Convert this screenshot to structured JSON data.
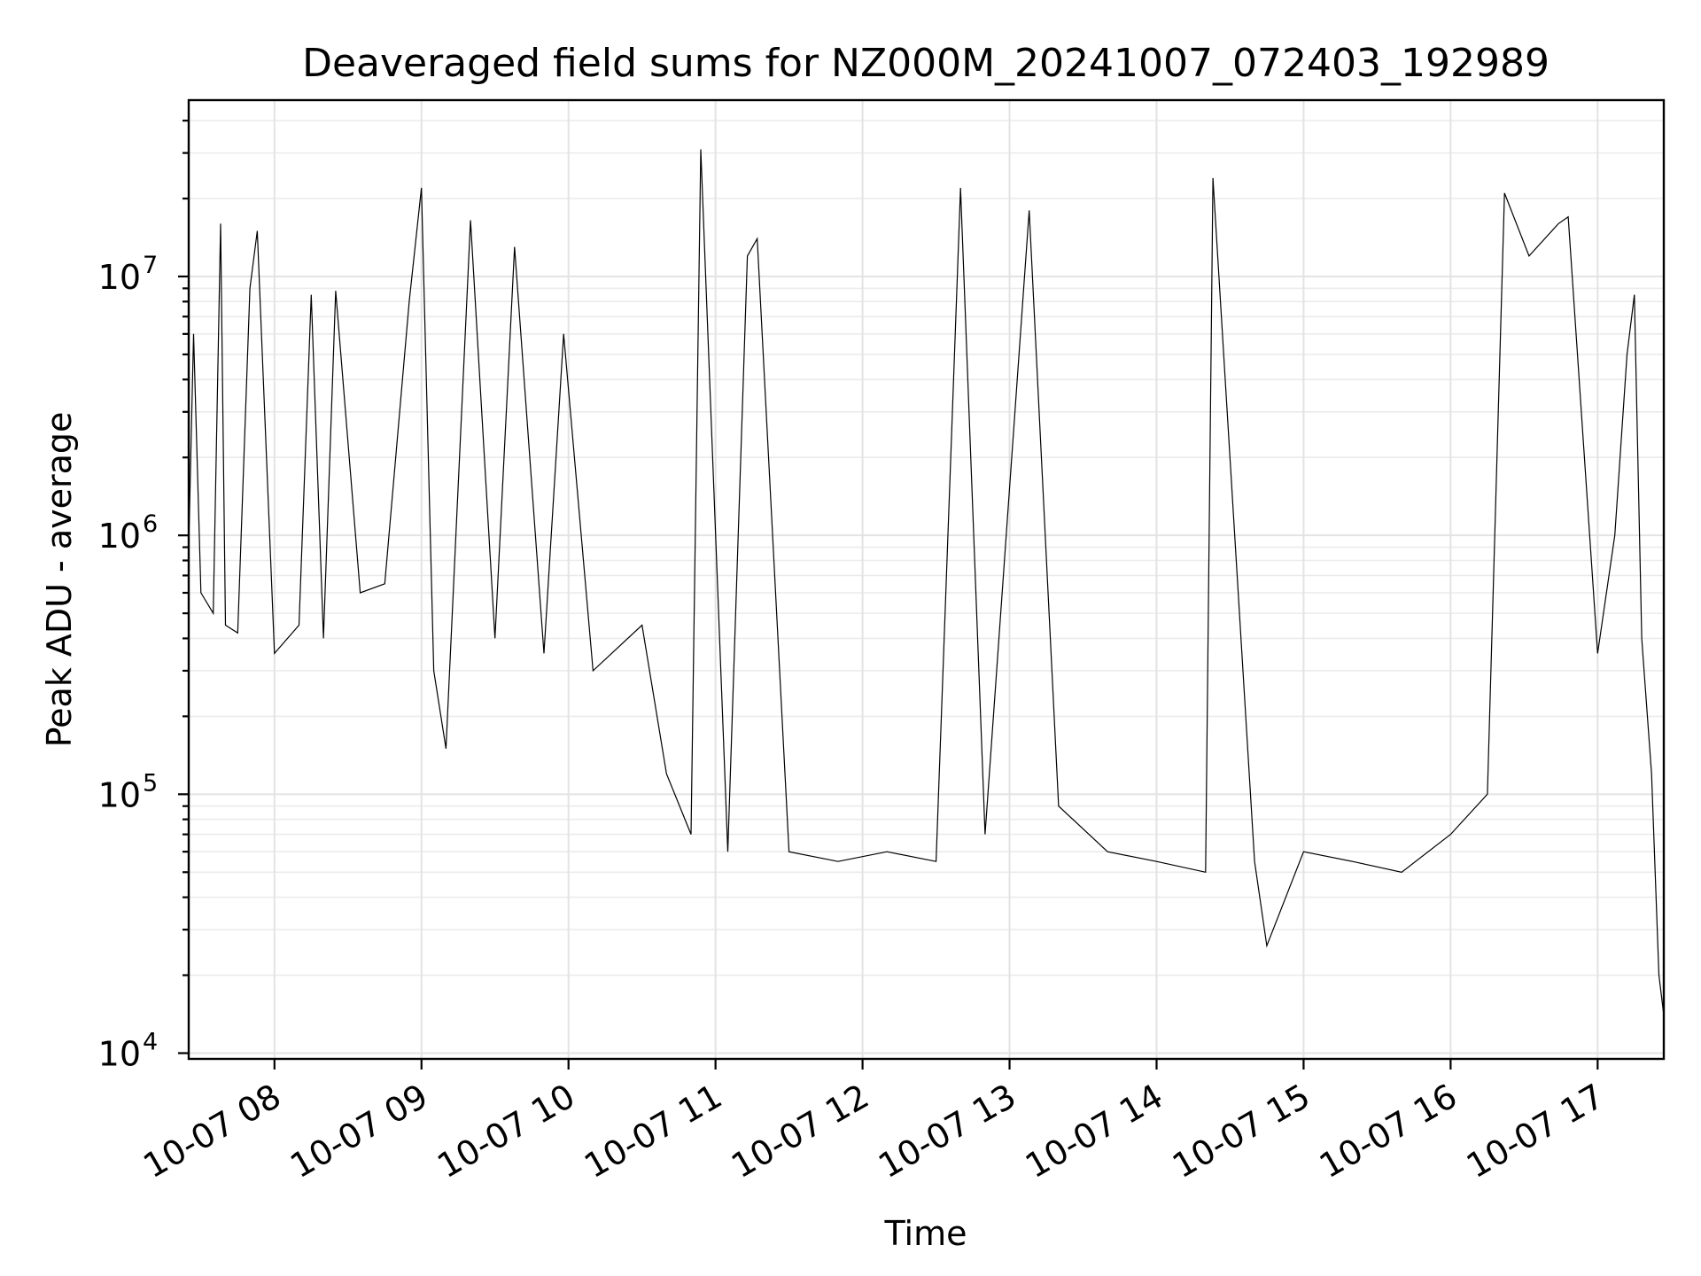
{
  "chart_data": {
    "type": "line",
    "title": "Deaveraged field sums for NZ000M_20241007_072403_192989",
    "xlabel": "Time",
    "ylabel": "Peak ADU - average",
    "yscale": "log",
    "ylim": [
      9500,
      48000000
    ],
    "xlim": [
      "2024-10-07 07:25",
      "2024-10-07 17:27"
    ],
    "grid": true,
    "y_ticks": [
      {
        "base": "10",
        "exp": "4",
        "value": 10000
      },
      {
        "base": "10",
        "exp": "5",
        "value": 100000
      },
      {
        "base": "10",
        "exp": "6",
        "value": 1000000
      },
      {
        "base": "10",
        "exp": "7",
        "value": 10000000
      }
    ],
    "x_ticks": [
      {
        "label": "10-07 08",
        "time": "2024-10-07 08:00"
      },
      {
        "label": "10-07 09",
        "time": "2024-10-07 09:00"
      },
      {
        "label": "10-07 10",
        "time": "2024-10-07 10:00"
      },
      {
        "label": "10-07 11",
        "time": "2024-10-07 11:00"
      },
      {
        "label": "10-07 12",
        "time": "2024-10-07 12:00"
      },
      {
        "label": "10-07 13",
        "time": "2024-10-07 13:00"
      },
      {
        "label": "10-07 14",
        "time": "2024-10-07 14:00"
      },
      {
        "label": "10-07 15",
        "time": "2024-10-07 15:00"
      },
      {
        "label": "10-07 16",
        "time": "2024-10-07 16:00"
      },
      {
        "label": "10-07 17",
        "time": "2024-10-07 17:00"
      }
    ],
    "series": [
      {
        "color": "#000000",
        "points": [
          [
            "2024-10-07 07:25",
            900000
          ],
          [
            "2024-10-07 07:27",
            6000000
          ],
          [
            "2024-10-07 07:30",
            600000
          ],
          [
            "2024-10-07 07:35",
            500000
          ],
          [
            "2024-10-07 07:38",
            16000000
          ],
          [
            "2024-10-07 07:40",
            450000
          ],
          [
            "2024-10-07 07:45",
            420000
          ],
          [
            "2024-10-07 07:50",
            9000000
          ],
          [
            "2024-10-07 07:53",
            15000000
          ],
          [
            "2024-10-07 08:00",
            350000
          ],
          [
            "2024-10-07 08:10",
            450000
          ],
          [
            "2024-10-07 08:15",
            8500000
          ],
          [
            "2024-10-07 08:20",
            400000
          ],
          [
            "2024-10-07 08:25",
            8800000
          ],
          [
            "2024-10-07 08:35",
            600000
          ],
          [
            "2024-10-07 08:45",
            650000
          ],
          [
            "2024-10-07 08:55",
            8000000
          ],
          [
            "2024-10-07 09:00",
            22000000
          ],
          [
            "2024-10-07 09:05",
            300000
          ],
          [
            "2024-10-07 09:10",
            150000
          ],
          [
            "2024-10-07 09:20",
            16500000
          ],
          [
            "2024-10-07 09:30",
            400000
          ],
          [
            "2024-10-07 09:38",
            13000000
          ],
          [
            "2024-10-07 09:50",
            350000
          ],
          [
            "2024-10-07 09:58",
            6000000
          ],
          [
            "2024-10-07 10:10",
            300000
          ],
          [
            "2024-10-07 10:30",
            450000
          ],
          [
            "2024-10-07 10:40",
            120000
          ],
          [
            "2024-10-07 10:50",
            70000
          ],
          [
            "2024-10-07 10:54",
            31000000
          ],
          [
            "2024-10-07 11:05",
            60000
          ],
          [
            "2024-10-07 11:13",
            12000000
          ],
          [
            "2024-10-07 11:17",
            14000000
          ],
          [
            "2024-10-07 11:30",
            60000
          ],
          [
            "2024-10-07 11:50",
            55000
          ],
          [
            "2024-10-07 12:10",
            60000
          ],
          [
            "2024-10-07 12:30",
            55000
          ],
          [
            "2024-10-07 12:40",
            22000000
          ],
          [
            "2024-10-07 12:50",
            70000
          ],
          [
            "2024-10-07 13:08",
            18000000
          ],
          [
            "2024-10-07 13:20",
            90000
          ],
          [
            "2024-10-07 13:40",
            60000
          ],
          [
            "2024-10-07 14:00",
            55000
          ],
          [
            "2024-10-07 14:20",
            50000
          ],
          [
            "2024-10-07 14:23",
            24000000
          ],
          [
            "2024-10-07 14:40",
            55000
          ],
          [
            "2024-10-07 14:45",
            26000
          ],
          [
            "2024-10-07 15:00",
            60000
          ],
          [
            "2024-10-07 15:20",
            55000
          ],
          [
            "2024-10-07 15:40",
            50000
          ],
          [
            "2024-10-07 16:00",
            70000
          ],
          [
            "2024-10-07 16:15",
            100000
          ],
          [
            "2024-10-07 16:22",
            21000000
          ],
          [
            "2024-10-07 16:32",
            12000000
          ],
          [
            "2024-10-07 16:44",
            16000000
          ],
          [
            "2024-10-07 16:48",
            17000000
          ],
          [
            "2024-10-07 17:00",
            350000
          ],
          [
            "2024-10-07 17:07",
            1000000
          ],
          [
            "2024-10-07 17:12",
            5000000
          ],
          [
            "2024-10-07 17:15",
            8500000
          ],
          [
            "2024-10-07 17:18",
            400000
          ],
          [
            "2024-10-07 17:22",
            120000
          ],
          [
            "2024-10-07 17:25",
            20000
          ],
          [
            "2024-10-07 17:27",
            14000
          ]
        ]
      }
    ]
  }
}
